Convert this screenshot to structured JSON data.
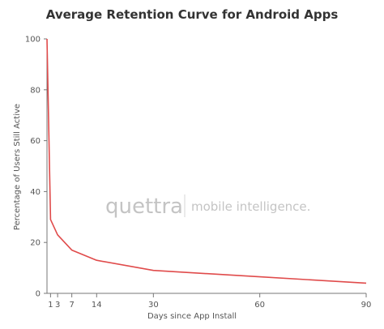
{
  "chart_data": {
    "type": "line",
    "title": "Average Retention Curve for Android Apps",
    "xlabel": "Days since App Install",
    "ylabel": "Percentage of Users Still Active",
    "xlim": [
      0,
      90
    ],
    "ylim": [
      0,
      100
    ],
    "xticks": [
      1,
      3,
      7,
      14,
      30,
      60,
      90
    ],
    "yticks": [
      0,
      20,
      40,
      60,
      80,
      100
    ],
    "grid": false,
    "series": [
      {
        "color": "#e04b4b",
        "x": [
          0,
          1,
          3,
          7,
          14,
          30,
          60,
          90
        ],
        "y": [
          100,
          29,
          23,
          17,
          13,
          9,
          6.5,
          4
        ]
      }
    ]
  },
  "watermark": {
    "brand": "quettra",
    "tagline": "mobile intelligence.",
    "color": "#c4c4c4"
  }
}
